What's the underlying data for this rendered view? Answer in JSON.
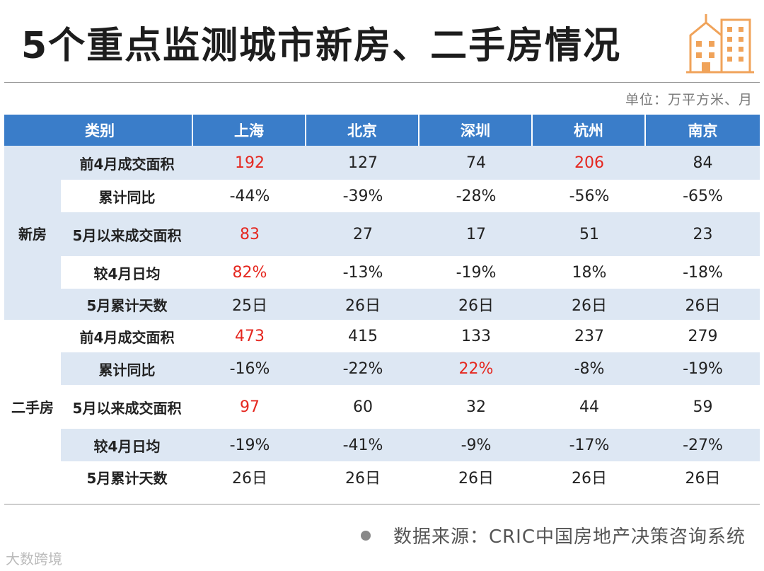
{
  "title": "5个重点监测城市新房、二手房情况",
  "unit": "单位：万平方米、月",
  "header": {
    "category": "类别",
    "cities": [
      "上海",
      "北京",
      "深圳",
      "杭州",
      "南京"
    ]
  },
  "groups": [
    {
      "label": "新房",
      "rows": [
        {
          "metric": "前4月成交面积",
          "values": [
            "192",
            "127",
            "74",
            "206",
            "84"
          ],
          "highlight": [
            true,
            false,
            false,
            true,
            false
          ],
          "shade": true
        },
        {
          "metric": "累计同比",
          "values": [
            "-44%",
            "-39%",
            "-28%",
            "-56%",
            "-65%"
          ],
          "highlight": [
            false,
            false,
            false,
            false,
            false
          ],
          "shade": false
        },
        {
          "metric": "5月以来成交面积",
          "values": [
            "83",
            "27",
            "17",
            "51",
            "23"
          ],
          "highlight": [
            true,
            false,
            false,
            false,
            false
          ],
          "shade": true
        },
        {
          "metric": "较4月日均",
          "values": [
            "82%",
            "-13%",
            "-19%",
            "18%",
            "-18%"
          ],
          "highlight": [
            true,
            false,
            false,
            false,
            false
          ],
          "shade": false
        },
        {
          "metric": "5月累计天数",
          "values": [
            "25日",
            "26日",
            "26日",
            "26日",
            "26日"
          ],
          "highlight": [
            false,
            false,
            false,
            false,
            false
          ],
          "shade": true
        }
      ]
    },
    {
      "label": "二手房",
      "rows": [
        {
          "metric": "前4月成交面积",
          "values": [
            "473",
            "415",
            "133",
            "237",
            "279"
          ],
          "highlight": [
            true,
            false,
            false,
            false,
            false
          ],
          "shade": false
        },
        {
          "metric": "累计同比",
          "values": [
            "-16%",
            "-22%",
            "22%",
            "-8%",
            "-19%"
          ],
          "highlight": [
            false,
            false,
            true,
            false,
            false
          ],
          "shade": true
        },
        {
          "metric": "5月以来成交面积",
          "values": [
            "97",
            "60",
            "32",
            "44",
            "59"
          ],
          "highlight": [
            true,
            false,
            false,
            false,
            false
          ],
          "shade": false
        },
        {
          "metric": "较4月日均",
          "values": [
            "-19%",
            "-41%",
            "-9%",
            "-17%",
            "-27%"
          ],
          "highlight": [
            false,
            false,
            false,
            false,
            false
          ],
          "shade": true
        },
        {
          "metric": "5月累计天数",
          "values": [
            "26日",
            "26日",
            "26日",
            "26日",
            "26日"
          ],
          "highlight": [
            false,
            false,
            false,
            false,
            false
          ],
          "shade": false
        }
      ]
    }
  ],
  "source": "数据来源：CRIC中国房地产决策咨询系统",
  "watermark": "大数跨境",
  "colors": {
    "header_bg": "#3a7dc9",
    "shade_bg": "#dde7f3",
    "highlight": "#e5271f",
    "logo": "#f0a35a"
  },
  "icons": {
    "logo": "buildings-icon",
    "source_bullet": "dot-icon"
  }
}
